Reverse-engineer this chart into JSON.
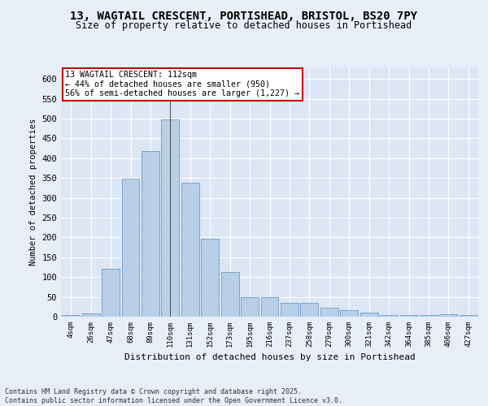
{
  "title_line1": "13, WAGTAIL CRESCENT, PORTISHEAD, BRISTOL, BS20 7PY",
  "title_line2": "Size of property relative to detached houses in Portishead",
  "xlabel": "Distribution of detached houses by size in Portishead",
  "ylabel": "Number of detached properties",
  "categories": [
    "4sqm",
    "26sqm",
    "47sqm",
    "68sqm",
    "89sqm",
    "110sqm",
    "131sqm",
    "152sqm",
    "173sqm",
    "195sqm",
    "216sqm",
    "237sqm",
    "258sqm",
    "279sqm",
    "300sqm",
    "321sqm",
    "342sqm",
    "364sqm",
    "385sqm",
    "406sqm",
    "427sqm"
  ],
  "values": [
    4,
    8,
    120,
    348,
    418,
    497,
    338,
    197,
    113,
    50,
    50,
    35,
    35,
    22,
    16,
    10,
    4,
    4,
    4,
    6,
    4
  ],
  "bar_color": "#b8cfe8",
  "bar_edge_color": "#7399c6",
  "highlight_index": 5,
  "highlight_line_color": "#555555",
  "annotation_text": "13 WAGTAIL CRESCENT: 112sqm\n← 44% of detached houses are smaller (950)\n56% of semi-detached houses are larger (1,227) →",
  "annotation_box_color": "#ffffff",
  "annotation_box_edge": "#cc0000",
  "background_color": "#e8eef7",
  "plot_bg_color": "#dce6f5",
  "grid_color": "#ffffff",
  "footer_text": "Contains HM Land Registry data © Crown copyright and database right 2025.\nContains public sector information licensed under the Open Government Licence v3.0.",
  "ylim": [
    0,
    630
  ],
  "yticks": [
    0,
    50,
    100,
    150,
    200,
    250,
    300,
    350,
    400,
    450,
    500,
    550,
    600
  ]
}
